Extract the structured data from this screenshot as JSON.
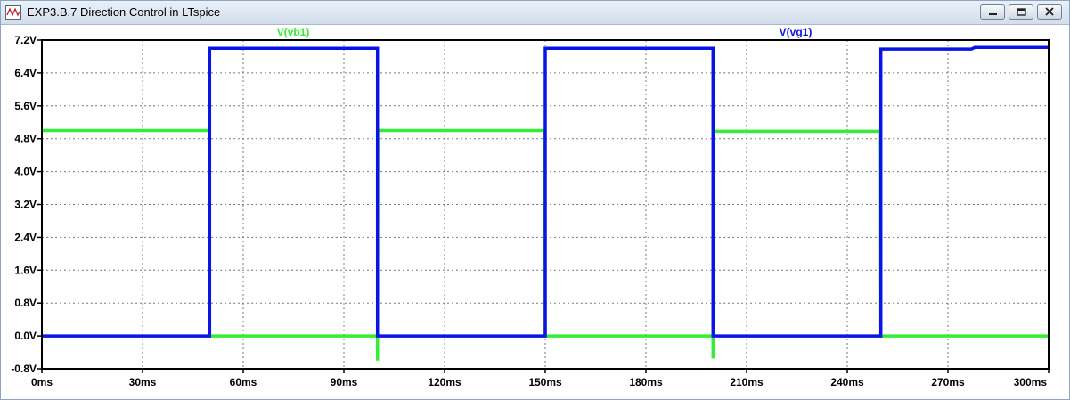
{
  "window": {
    "title": "EXP3.B.7 Direction Control in LTspice"
  },
  "colors": {
    "vb1": "#33ee33",
    "vg1": "#0a14e6",
    "grid": "#7a7a7a",
    "frame": "#000000"
  },
  "chart_data": {
    "type": "line",
    "xlim": [
      0,
      300
    ],
    "ylim": [
      -0.8,
      7.2
    ],
    "x_ticks": [
      0,
      30,
      60,
      90,
      120,
      150,
      180,
      210,
      240,
      270,
      300
    ],
    "x_tick_labels": [
      "0ms",
      "30ms",
      "60ms",
      "90ms",
      "120ms",
      "150ms",
      "180ms",
      "210ms",
      "240ms",
      "270ms",
      "300ms"
    ],
    "y_ticks": [
      7.2,
      6.4,
      5.6,
      4.8,
      4.0,
      3.2,
      2.4,
      1.6,
      0.8,
      0.0,
      -0.8
    ],
    "y_tick_labels": [
      "7.2V",
      "6.4V",
      "5.6V",
      "4.8V",
      "4.0V",
      "3.2V",
      "2.4V",
      "1.6V",
      "0.8V",
      "0.0V",
      "-0.8V"
    ],
    "grid": true,
    "legend_placement": "top",
    "series": [
      {
        "name": "V(vb1)",
        "color": "#33ee33",
        "x": [
          0,
          49.9,
          50,
          99.9,
          100,
          100,
          100.1,
          149.9,
          150,
          199.9,
          200,
          200,
          200.1,
          249.9,
          250,
          300
        ],
        "y": [
          5.0,
          5.0,
          0.0,
          0.0,
          0.0,
          -0.6,
          5.0,
          5.0,
          0.0,
          0.0,
          0.0,
          -0.55,
          4.98,
          4.98,
          0.0,
          0.0
        ]
      },
      {
        "name": "V(vg1)",
        "color": "#0a14e6",
        "x": [
          0,
          50,
          50,
          100,
          100,
          150,
          150,
          200,
          200,
          250,
          250,
          277,
          278,
          300
        ],
        "y": [
          0.0,
          0.0,
          7.0,
          7.0,
          0.0,
          0.0,
          7.0,
          7.0,
          0.0,
          0.0,
          6.98,
          6.98,
          7.02,
          7.02
        ]
      }
    ]
  }
}
